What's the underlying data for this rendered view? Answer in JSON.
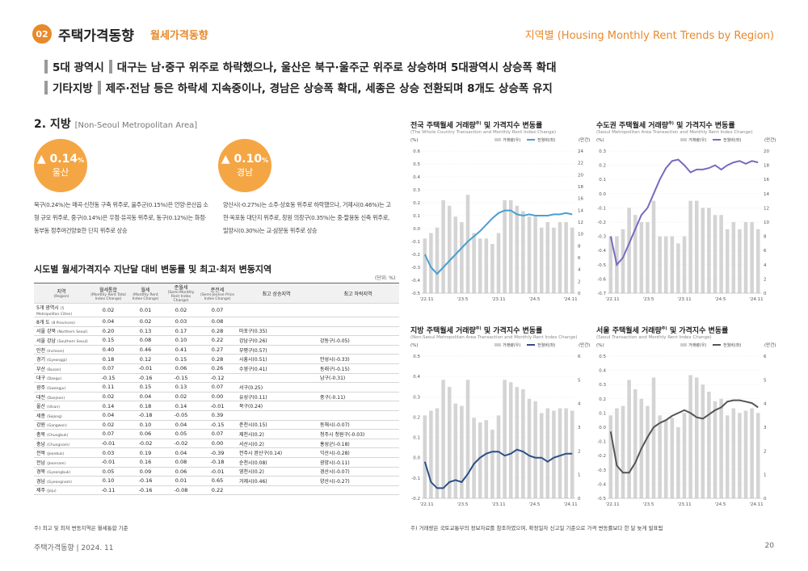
{
  "header": {
    "num": "02",
    "title": "주택가격동향",
    "subtitle": "월세가격동향",
    "right": "지역별 (Housing Monthly Rent Trends by Region)"
  },
  "summary": [
    {
      "tag": "5대 광역시",
      "text": "대구는 남·중구 위주로 하락했으나, 울산은 북구·울주군 위주로 상승하며 5대광역시 상승폭 확대"
    },
    {
      "tag": "기타지방",
      "text": "제주·전남 등은 하락세 지속중이나, 경남은 상승폭 확대, 세종은 상승 전환되며 8개도 상승폭 유지"
    }
  ],
  "section": {
    "title": "2. 지방",
    "en": "[Non-Seoul Metropolitan Area]"
  },
  "highlights": [
    {
      "value": "0.14",
      "unit": "%",
      "region": "울산",
      "arrow": "▲",
      "desc": "북구(0.24%)는 매곡·신천동 구축 위주로, 울주군(0.15%)은 언양·온산읍 소형 규모 위주로, 중구(0.14%)은 우정·유곡동 위주로, 동구(0.12%)는 화정·동부동 정주여건양호한 단지 위주로 상승"
    },
    {
      "value": "0.10",
      "unit": "%",
      "region": "경남",
      "arrow": "▲",
      "desc": "양산시(-0.27%)는 소주·상호동 위주로 하락했으나, 거제시(0.46%)는 고현·옥포동 대단지 위주로, 창원 의창구(0.35%)는 중·팔용동 신축 위주로, 밀양시(0.30%)는 교·삼문동 위주로 상승"
    }
  ],
  "table": {
    "title": "시도별 월세가격지수 지난달 대비 변동률 및 최고·최저 변동지역",
    "unit": "(단위: %)",
    "headers": [
      {
        "ko": "지역",
        "en": "(Region)"
      },
      {
        "ko": "월세통합",
        "en": "(Monthly Rent Total Index Change)"
      },
      {
        "ko": "월세",
        "en": "(Monthly Rent Index Change)"
      },
      {
        "ko": "준월세",
        "en": "(Semi-Monthly Rent Index Change)"
      },
      {
        "ko": "준전세",
        "en": "(Semi-Jeonse Price Index Change)"
      },
      {
        "ko": "최고 상승지역",
        "en": ""
      },
      {
        "ko": "최고 하락지역",
        "en": ""
      }
    ],
    "rows": [
      {
        "ko": "5개 광역시",
        "en": "(5 Metropolitan Cities)",
        "v": [
          "0.02",
          "0.01",
          "0.02",
          "0.07"
        ],
        "hi": "",
        "lo": ""
      },
      {
        "ko": "8개 도",
        "en": "(8 Provinces)",
        "v": [
          "0.04",
          "0.02",
          "0.03",
          "0.08"
        ],
        "hi": "",
        "lo": ""
      },
      {
        "ko": "서울 강북",
        "en": "(Northern Seoul)",
        "v": [
          "0.20",
          "0.13",
          "0.17",
          "0.28"
        ],
        "hi": "마포구(0.35)",
        "lo": ""
      },
      {
        "ko": "서울 강남",
        "en": "(Southern Seoul)",
        "v": [
          "0.15",
          "0.08",
          "0.10",
          "0.22"
        ],
        "hi": "강남구(0.26)",
        "lo": "강동구(-0.05)"
      },
      {
        "ko": "인천",
        "en": "(Incheon)",
        "v": [
          "0.40",
          "0.46",
          "0.41",
          "0.27"
        ],
        "hi": "부평구(0.57)",
        "lo": ""
      },
      {
        "ko": "경기",
        "en": "(Gyeonggi)",
        "v": [
          "0.18",
          "0.12",
          "0.15",
          "0.28"
        ],
        "hi": "시흥시(0.51)",
        "lo": "안성시(-0.33)"
      },
      {
        "ko": "부산",
        "en": "(Busan)",
        "v": [
          "0.07",
          "-0.01",
          "0.06",
          "0.26"
        ],
        "hi": "수영구(0.41)",
        "lo": "동래구(-0.15)"
      },
      {
        "ko": "대구",
        "en": "(Daegu)",
        "v": [
          "-0.15",
          "-0.16",
          "-0.15",
          "-0.12"
        ],
        "hi": "",
        "lo": "남구(-0.31)"
      },
      {
        "ko": "광주",
        "en": "(Gwangju)",
        "v": [
          "0.11",
          "0.15",
          "0.13",
          "0.07"
        ],
        "hi": "서구(0.25)",
        "lo": ""
      },
      {
        "ko": "대전",
        "en": "(Daejeon)",
        "v": [
          "0.02",
          "0.04",
          "0.02",
          "0.00"
        ],
        "hi": "유성구(0.11)",
        "lo": "중구(-0.11)"
      },
      {
        "ko": "울산",
        "en": "(Ulsan)",
        "v": [
          "0.14",
          "0.18",
          "0.14",
          "-0.01"
        ],
        "hi": "북구(0.24)",
        "lo": ""
      },
      {
        "ko": "세종",
        "en": "(Sejong)",
        "v": [
          "0.04",
          "-0.18",
          "-0.05",
          "0.39"
        ],
        "hi": "",
        "lo": ""
      },
      {
        "ko": "강원",
        "en": "(Gangwon)",
        "v": [
          "0.02",
          "0.10",
          "0.04",
          "-0.15"
        ],
        "hi": "춘천시(0.15)",
        "lo": "동해시(-0.07)"
      },
      {
        "ko": "충북",
        "en": "(Chungbuk)",
        "v": [
          "0.07",
          "0.06",
          "0.05",
          "0.07"
        ],
        "hi": "제천시(0.2)",
        "lo": "청주시 청원구(-0.03)"
      },
      {
        "ko": "충남",
        "en": "(Chungnam)",
        "v": [
          "-0.01",
          "-0.02",
          "-0.02",
          "0.00"
        ],
        "hi": "서산시(0.2)",
        "lo": "홍성군(-0.18)"
      },
      {
        "ko": "전북",
        "en": "(Jeonbuk)",
        "v": [
          "0.03",
          "0.19",
          "0.04",
          "-0.39"
        ],
        "hi": "전주시 완산구(0.14)",
        "lo": "익산시(-0.28)"
      },
      {
        "ko": "전남",
        "en": "(Jeonnam)",
        "v": [
          "-0.01",
          "0.16",
          "0.08",
          "-0.18"
        ],
        "hi": "순천시(0.08)",
        "lo": "광양시(-0.11)"
      },
      {
        "ko": "경북",
        "en": "(Gyeongbuk)",
        "v": [
          "0.05",
          "0.09",
          "0.06",
          "-0.01"
        ],
        "hi": "영천시(0.2)",
        "lo": "경산시(-0.07)"
      },
      {
        "ko": "경남",
        "en": "(Gyeongnam)",
        "v": [
          "0.10",
          "-0.16",
          "0.01",
          "0.65"
        ],
        "hi": "거제시(0.46)",
        "lo": "양산시(-0.27)"
      },
      {
        "ko": "제주",
        "en": "(Jeju)",
        "v": [
          "-0.11",
          "-0.16",
          "-0.08",
          "0.22"
        ],
        "hi": "",
        "lo": ""
      }
    ],
    "note": "주) 최고 및 최저 변동지역은 월세통합 기준"
  },
  "chart_note": "주) 거래량은 국토교통부의 정보자료를 참조하였으며, 확정일자 신고일 기준으로 가격 변동률보다 한 달 늦게 발표됨",
  "footer": {
    "left": "주택가격동향   |   2024. 11",
    "page": "20"
  },
  "chart_data": [
    {
      "type": "bar+line",
      "title": "전국 주택월세 거래량",
      "title_sup": "주)",
      "title_rest": " 및 가격지수 변동률",
      "subtitle": "(The Whole Country Transaction and Monthly Rent Index Change)",
      "ylabel_left": "(%)",
      "ylabel_right": "(만건)",
      "legend_bar": "거래량(우)",
      "legend_line": "전월비(좌)",
      "line_color": "#4a9fd0",
      "ylim_left": [
        -0.5,
        0.6
      ],
      "yticks_left": [
        "0.6",
        "0.5",
        "0.4",
        "0.3",
        "0.2",
        "0.1",
        "0.0",
        "-0.1",
        "-0.2",
        "-0.3",
        "-0.4",
        "-0.5"
      ],
      "ylim_right": [
        0,
        26
      ],
      "yticks_right": [
        "24",
        "22",
        "20",
        "18",
        "16",
        "14",
        "12",
        "10",
        "8",
        "6",
        "4",
        "2",
        "0"
      ],
      "xticks": [
        "'22.11",
        "'23.5",
        "'23.11",
        "'24.5",
        "'24.11"
      ],
      "line": [
        -0.2,
        -0.3,
        -0.35,
        -0.3,
        -0.25,
        -0.2,
        -0.15,
        -0.1,
        -0.06,
        -0.02,
        0.03,
        0.08,
        0.12,
        0.14,
        0.14,
        0.11,
        0.1,
        0.11,
        0.1,
        0.1,
        0.1,
        0.11,
        0.11,
        0.12,
        0.11
      ],
      "bars": [
        10,
        11,
        12,
        17,
        16,
        14,
        13,
        18,
        11,
        10,
        10,
        9,
        11,
        17,
        17,
        16,
        15,
        14,
        14,
        12,
        13,
        12,
        13,
        13,
        12
      ]
    },
    {
      "type": "bar+line",
      "title": "수도권 주택월세 거래량",
      "title_sup": "주)",
      "title_rest": " 및 가격지수 변동률",
      "subtitle": "(Seoul Metropolitan Area Transaction and Monthly Rent Index Change)",
      "ylabel_left": "(%)",
      "ylabel_right": "(만건)",
      "legend_bar": "거래량(우)",
      "legend_line": "전월비(좌)",
      "line_color": "#7b68c2",
      "ylim_left": [
        -0.7,
        0.3
      ],
      "yticks_left": [
        "0.3",
        "0.2",
        "0.1",
        "0.0",
        "-0.1",
        "-0.2",
        "-0.3",
        "-0.4",
        "-0.5",
        "-0.6",
        "-0.7"
      ],
      "ylim_right": [
        0,
        20
      ],
      "yticks_right": [
        "20",
        "18",
        "16",
        "14",
        "12",
        "10",
        "8",
        "6",
        "4",
        "2",
        "0"
      ],
      "xticks": [
        "'22.11",
        "'23.5",
        "'23.11",
        "'24.5",
        "'24.11"
      ],
      "line": [
        -0.3,
        -0.5,
        -0.45,
        -0.35,
        -0.25,
        -0.15,
        -0.1,
        0,
        0.1,
        0.18,
        0.23,
        0.24,
        0.2,
        0.15,
        0.17,
        0.17,
        0.18,
        0.2,
        0.17,
        0.2,
        0.22,
        0.23,
        0.21,
        0.23,
        0.22
      ],
      "bars": [
        8,
        8,
        9,
        12,
        11,
        10,
        10,
        13,
        8,
        8,
        8,
        7,
        8,
        13,
        13,
        12,
        12,
        11,
        11,
        9,
        10,
        9,
        10,
        10,
        9
      ]
    },
    {
      "type": "bar+line",
      "title": "지방 주택월세 거래량",
      "title_sup": "주)",
      "title_rest": " 및 가격지수 변동률",
      "subtitle": "(Non-Seoul Metropolitan Area Transaction and Monthly Rent Index Change)",
      "ylabel_left": "(%)",
      "ylabel_right": "(만건)",
      "legend_bar": "거래량(우)",
      "legend_line": "전월비(좌)",
      "line_color": "#2c4f86",
      "ylim_left": [
        -0.2,
        0.5
      ],
      "yticks_left": [
        "0.5",
        "0.4",
        "0.3",
        "0.2",
        "0.1",
        "0.0",
        "-0.1",
        "-0.2"
      ],
      "ylim_right": [
        0,
        6
      ],
      "yticks_right": [
        "6",
        "5",
        "4",
        "3",
        "2",
        "1",
        "0"
      ],
      "xticks": [
        "'22.11",
        "'23.5",
        "'23.11",
        "'24.5",
        "'24.11"
      ],
      "line": [
        -0.02,
        -0.12,
        -0.15,
        -0.15,
        -0.12,
        -0.11,
        -0.12,
        -0.08,
        -0.03,
        0.0,
        0.02,
        0.03,
        0.03,
        0.01,
        0.02,
        0.04,
        0.03,
        0.01,
        0.0,
        0.0,
        -0.02,
        0.0,
        0.01,
        0.02,
        0.02
      ],
      "bars": [
        3.5,
        3.7,
        3.8,
        5.0,
        4.7,
        4.0,
        3.9,
        5.0,
        3.4,
        3.2,
        3.3,
        2.9,
        3.5,
        5.0,
        4.9,
        4.7,
        4.6,
        4.2,
        4.1,
        3.6,
        3.8,
        3.7,
        3.8,
        3.8,
        3.7
      ]
    },
    {
      "type": "bar+line",
      "title": "서울 주택월세 거래량",
      "title_sup": "주)",
      "title_rest": " 및 가격지수 변동률",
      "subtitle": "(Seoul Transaction and Monthly Rent Index Change)",
      "ylabel_left": "(%)",
      "ylabel_right": "(만건)",
      "legend_bar": "거래량(우)",
      "legend_line": "전월비(좌)",
      "line_color": "#555555",
      "ylim_left": [
        -0.5,
        0.5
      ],
      "yticks_left": [
        "0.5",
        "0.4",
        "0.3",
        "0.2",
        "0.1",
        "0.0",
        "-0.1",
        "-0.2",
        "-0.3",
        "-0.4",
        "-0.5"
      ],
      "ylim_right": [
        0,
        6
      ],
      "yticks_right": [
        "6",
        "5",
        "4",
        "3",
        "2",
        "1",
        "0"
      ],
      "xticks": [
        "'22.11",
        "'23.5",
        "'23.11",
        "'24.5",
        "'24.11"
      ],
      "line": [
        -0.03,
        -0.27,
        -0.32,
        -0.32,
        -0.25,
        -0.15,
        -0.07,
        0,
        0.03,
        0.05,
        0.08,
        0.1,
        0.12,
        0.1,
        0.07,
        0.06,
        0.09,
        0.12,
        0.14,
        0.18,
        0.19,
        0.19,
        0.18,
        0.17,
        0.14
      ],
      "bars": [
        3.5,
        3.8,
        3.9,
        5.0,
        4.6,
        4.2,
        3.9,
        5.1,
        3.5,
        3.3,
        3.4,
        3.0,
        3.6,
        5.2,
        5.1,
        4.8,
        4.5,
        4.1,
        4.2,
        3.5,
        3.8,
        3.6,
        3.7,
        3.8,
        3.6
      ]
    }
  ]
}
